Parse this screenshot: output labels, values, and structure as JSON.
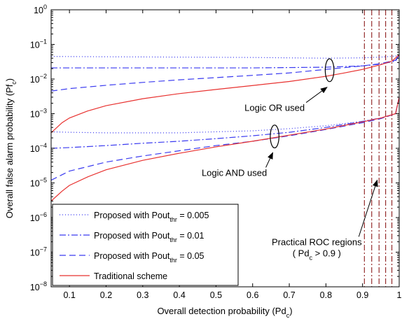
{
  "chart_data": {
    "type": "line",
    "title": "",
    "xlabel": "Overall detection probability (Pd",
    "xlabel_sub": "c",
    "xlabel_tail": ")",
    "ylabel": "Overall false alarm probability (Pf",
    "ylabel_sub": "c",
    "ylabel_tail": ")",
    "xlim": [
      0.05,
      1.0
    ],
    "ylim": [
      1e-08,
      1
    ],
    "y_scale": "log",
    "grid": false,
    "x_ticks": [
      "0.1",
      "0.2",
      "0.3",
      "0.4",
      "0.5",
      "0.6",
      "0.7",
      "0.8",
      "0.9",
      "1"
    ],
    "y_tick_base": "10",
    "y_tick_exps": [
      "0",
      "−1",
      "−2",
      "−3",
      "−4",
      "−5",
      "−6",
      "−7",
      "−8"
    ],
    "legend_position": "bottom-left",
    "legend": [
      {
        "prefix": "Proposed with Pout",
        "sub": "thr",
        "suffix": " = 0.005",
        "color": "#3a3af0",
        "dash": "1,3"
      },
      {
        "prefix": "Proposed with Pout",
        "sub": "thr",
        "suffix": " = 0.01",
        "color": "#3a3af0",
        "dash": "9,3,2,3"
      },
      {
        "prefix": "Proposed with Pout",
        "sub": "thr",
        "suffix": " = 0.05",
        "color": "#3a3af0",
        "dash": "9,5"
      },
      {
        "prefix": "Traditional scheme",
        "sub": "",
        "suffix": "",
        "color": "#e8312f",
        "dash": ""
      }
    ],
    "series": [
      {
        "name": "Proposed with Pout_thr = 0.005 (Logic OR)",
        "style": 0,
        "x": [
          0.05,
          0.2,
          0.4,
          0.6,
          0.8,
          0.9,
          0.95,
          0.99,
          1.0
        ],
        "y": [
          0.045,
          0.044,
          0.043,
          0.042,
          0.04,
          0.041,
          0.043,
          0.046,
          0.05
        ]
      },
      {
        "name": "Proposed with Pout_thr = 0.01 (Logic OR)",
        "style": 1,
        "x": [
          0.05,
          0.2,
          0.4,
          0.6,
          0.8,
          0.9,
          0.95,
          0.99,
          1.0
        ],
        "y": [
          0.021,
          0.021,
          0.021,
          0.021,
          0.022,
          0.024,
          0.027,
          0.033,
          0.05
        ]
      },
      {
        "name": "Proposed with Pout_thr = 0.05 (Logic OR)",
        "style": 2,
        "x": [
          0.05,
          0.1,
          0.2,
          0.3,
          0.4,
          0.5,
          0.6,
          0.7,
          0.8,
          0.9,
          0.95,
          0.99,
          1.0
        ],
        "y": [
          0.0045,
          0.0053,
          0.0066,
          0.008,
          0.0095,
          0.011,
          0.0128,
          0.015,
          0.019,
          0.024,
          0.028,
          0.035,
          0.05
        ]
      },
      {
        "name": "Traditional scheme (Logic OR)",
        "style": 3,
        "x": [
          0.05,
          0.08,
          0.1,
          0.15,
          0.2,
          0.3,
          0.4,
          0.5,
          0.6,
          0.7,
          0.8,
          0.85,
          0.9,
          0.95,
          0.98,
          1.0
        ],
        "y": [
          0.00028,
          0.00055,
          0.00075,
          0.0012,
          0.0017,
          0.0027,
          0.0038,
          0.005,
          0.0065,
          0.0085,
          0.012,
          0.015,
          0.019,
          0.026,
          0.033,
          0.05
        ]
      },
      {
        "name": "Proposed with Pout_thr = 0.005 (Logic AND)",
        "style": 0,
        "x": [
          0.05,
          0.1,
          0.2,
          0.3,
          0.4,
          0.5,
          0.6,
          0.7,
          0.8,
          0.9,
          0.95,
          0.99,
          1.0
        ],
        "y": [
          0.0003,
          0.00029,
          0.00028,
          0.00028,
          0.00028,
          0.0003,
          0.00032,
          0.00037,
          0.00045,
          0.0006,
          0.00075,
          0.001,
          0.003
        ]
      },
      {
        "name": "Proposed with Pout_thr = 0.01 (Logic AND)",
        "style": 1,
        "x": [
          0.05,
          0.1,
          0.2,
          0.3,
          0.4,
          0.5,
          0.6,
          0.7,
          0.8,
          0.9,
          0.95,
          0.99,
          1.0
        ],
        "y": [
          0.0001,
          0.000105,
          0.00012,
          0.00014,
          0.00016,
          0.00019,
          0.00023,
          0.00029,
          0.0004,
          0.0006,
          0.00075,
          0.001,
          0.003
        ]
      },
      {
        "name": "Proposed with Pout_thr = 0.05 (Logic AND)",
        "style": 2,
        "x": [
          0.05,
          0.1,
          0.2,
          0.3,
          0.4,
          0.5,
          0.6,
          0.7,
          0.8,
          0.9,
          0.95,
          0.99,
          1.0
        ],
        "y": [
          1.2e-05,
          2.2e-05,
          4e-05,
          6e-05,
          8.5e-05,
          0.00012,
          0.00016,
          0.00023,
          0.00035,
          0.00055,
          0.00072,
          0.001,
          0.003
        ]
      },
      {
        "name": "Traditional scheme (Logic AND)",
        "style": 3,
        "x": [
          0.05,
          0.08,
          0.1,
          0.15,
          0.2,
          0.3,
          0.4,
          0.5,
          0.6,
          0.7,
          0.8,
          0.9,
          0.95,
          0.99,
          1.0
        ],
        "y": [
          3e-06,
          5.8e-06,
          8.5e-06,
          1.5e-05,
          2.4e-05,
          4.5e-05,
          7.2e-05,
          0.00011,
          0.00016,
          0.00024,
          0.00036,
          0.00058,
          0.00075,
          0.001,
          0.003
        ]
      }
    ],
    "vertical_lines": {
      "x": [
        0.905,
        0.925,
        0.945,
        0.963,
        0.98
      ],
      "color": "#8b1a1a",
      "dash": "8,3,2,3"
    },
    "annotations": [
      {
        "text": "Logic OR used",
        "x": 0.66,
        "y": 0.0012,
        "arrow_to": [
          0.803,
          0.0058
        ],
        "ellipse": {
          "cx": 0.81,
          "cy": 0.018,
          "rx_frac": 0.0125,
          "ry_decades": 0.33
        }
      },
      {
        "text": "Logic AND used",
        "x": 0.55,
        "y": 1.6e-05,
        "arrow_to": [
          0.655,
          7.5e-05
        ],
        "ellipse": {
          "cx": 0.66,
          "cy": 0.00022,
          "rx_frac": 0.0125,
          "ry_decades": 0.33
        }
      },
      {
        "text": "Practical ROC regions",
        "text2": "( Pd",
        "text2_sub": "c",
        "text2_tail": " > 0.9 )",
        "x": 0.775,
        "y": 1.6e-07,
        "arrow_to": [
          0.94,
          1.2e-05
        ]
      }
    ]
  }
}
